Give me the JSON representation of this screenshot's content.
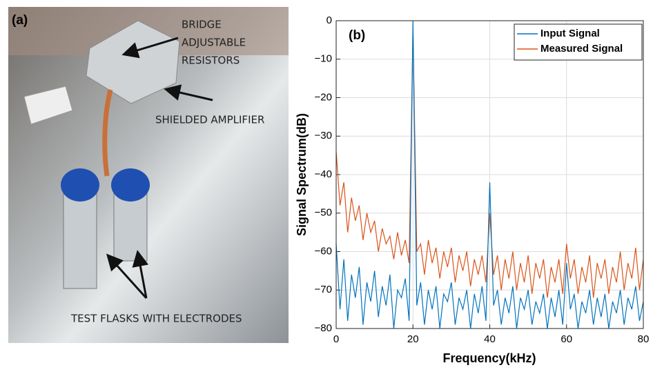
{
  "photo": {
    "label": "(a)",
    "annotations": [
      "BRIDGE",
      "ADJUSTABLE",
      "RESISTORS",
      "SHIELDED AMPLIFIER",
      "TEST FLASKS WITH ELECTRODES"
    ]
  },
  "chart_data": {
    "type": "line",
    "label": "(b)",
    "xlabel": "Frequency(kHz)",
    "ylabel": "Signal Spectrum(dB)",
    "x": [
      0,
      1,
      2,
      3,
      4,
      5,
      6,
      7,
      8,
      9,
      10,
      11,
      12,
      13,
      14,
      15,
      16,
      17,
      18,
      19,
      20,
      21,
      22,
      23,
      24,
      25,
      26,
      27,
      28,
      29,
      30,
      31,
      32,
      33,
      34,
      35,
      36,
      37,
      38,
      39,
      40,
      41,
      42,
      43,
      44,
      45,
      46,
      47,
      48,
      49,
      50,
      51,
      52,
      53,
      54,
      55,
      56,
      57,
      58,
      59,
      60,
      61,
      62,
      63,
      64,
      65,
      66,
      67,
      68,
      69,
      70,
      71,
      72,
      73,
      74,
      75,
      76,
      77,
      78,
      79,
      80
    ],
    "series": [
      {
        "name": "Input Signal",
        "color": "#0072bd",
        "values": [
          -58,
          -75,
          -62,
          -78,
          -66,
          -72,
          -64,
          -79,
          -68,
          -73,
          -65,
          -77,
          -69,
          -74,
          -66,
          -80,
          -70,
          -72,
          -67,
          -78,
          0,
          -74,
          -68,
          -79,
          -70,
          -75,
          -69,
          -80,
          -71,
          -73,
          -68,
          -79,
          -72,
          -75,
          -70,
          -80,
          -71,
          -76,
          -69,
          -78,
          -42,
          -74,
          -70,
          -79,
          -72,
          -76,
          -69,
          -80,
          -72,
          -75,
          -70,
          -79,
          -73,
          -76,
          -71,
          -80,
          -72,
          -77,
          -70,
          -79,
          -63,
          -75,
          -71,
          -80,
          -73,
          -76,
          -70,
          -79,
          -72,
          -77,
          -71,
          -80,
          -73,
          -76,
          -70,
          -79,
          -72,
          -75,
          -69,
          -78,
          -73
        ]
      },
      {
        "name": "Measured Signal",
        "color": "#d95319",
        "values": [
          -34,
          -48,
          -42,
          -55,
          -46,
          -52,
          -48,
          -57,
          -50,
          -55,
          -52,
          -60,
          -54,
          -58,
          -56,
          -62,
          -55,
          -61,
          -57,
          -63,
          -2,
          -60,
          -58,
          -66,
          -57,
          -63,
          -59,
          -67,
          -60,
          -64,
          -59,
          -68,
          -61,
          -65,
          -60,
          -69,
          -62,
          -66,
          -61,
          -68,
          -50,
          -66,
          -61,
          -70,
          -62,
          -67,
          -60,
          -70,
          -63,
          -68,
          -61,
          -71,
          -63,
          -67,
          -62,
          -72,
          -64,
          -68,
          -62,
          -71,
          -58,
          -67,
          -62,
          -71,
          -64,
          -68,
          -61,
          -72,
          -63,
          -67,
          -62,
          -71,
          -64,
          -68,
          -60,
          -70,
          -63,
          -67,
          -59,
          -70,
          -62
        ]
      }
    ],
    "xlim": [
      0,
      80
    ],
    "xticks": [
      0,
      20,
      40,
      60,
      80
    ],
    "ylim": [
      -80,
      0
    ],
    "yticks": [
      {
        "value": -80,
        "label": "−80"
      },
      {
        "value": -70,
        "label": "−70"
      },
      {
        "value": -60,
        "label": "−60"
      },
      {
        "value": -50,
        "label": "−50"
      },
      {
        "value": -40,
        "label": "−40"
      },
      {
        "value": -30,
        "label": "−30"
      },
      {
        "value": -20,
        "label": "−20"
      },
      {
        "value": -10,
        "label": "−10"
      },
      0
    ],
    "grid": true,
    "legend": "top-right"
  }
}
